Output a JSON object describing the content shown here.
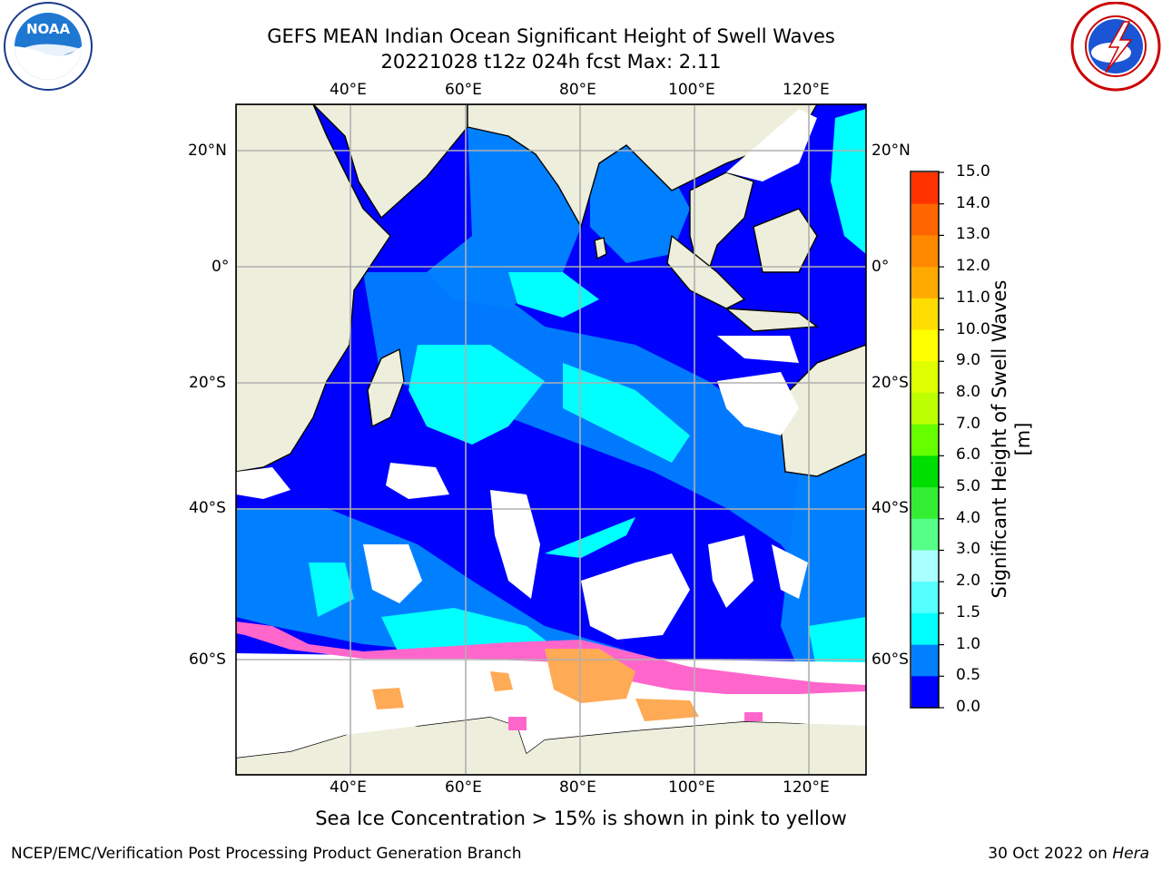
{
  "title": {
    "line1": "GEFS MEAN Indian Ocean Significant Height of Swell Waves",
    "line2": "20221028 t12z 024h fcst   Max: 2.11"
  },
  "logos": {
    "left": "NOAA",
    "right": "NATIONAL WEATHER SERVICE"
  },
  "map": {
    "lon_ticks_top": [
      "40°E",
      "60°E",
      "80°E",
      "100°E",
      "120°E"
    ],
    "lon_ticks_bottom": [
      "40°E",
      "60°E",
      "80°E",
      "100°E",
      "120°E"
    ],
    "lat_ticks_left": [
      "20°N",
      "0°",
      "20°S",
      "40°S",
      "60°S"
    ],
    "lat_ticks_right": [
      "20°N",
      "0°",
      "20°S",
      "40°S",
      "60°S"
    ],
    "colors": {
      "land": "#eeeedd",
      "ocean_low": "#0000ff",
      "ocean_mid": "#0080ff",
      "ocean_high": "#00ffff",
      "ice_pink": "#ff66cc",
      "ice_orange": "#ffaa55"
    }
  },
  "colorbar": {
    "label": "Significant Height of Swell Waves [m]",
    "ticks": [
      "15.0",
      "14.0",
      "13.0",
      "12.0",
      "11.0",
      "10.0",
      "9.0",
      "8.0",
      "7.0",
      "6.0",
      "5.0",
      "4.0",
      "3.0",
      "2.0",
      "1.5",
      "1.0",
      "0.5",
      "0.0"
    ],
    "colors": [
      "#ff0000",
      "#ff3300",
      "#ff6600",
      "#ff8800",
      "#ffaa00",
      "#ffdd00",
      "#ffff00",
      "#ddff00",
      "#bbff00",
      "#66ff00",
      "#00dd00",
      "#33ee33",
      "#55ff88",
      "#aaffff",
      "#55ffff",
      "#00ffff",
      "#0080ff",
      "#0000ff"
    ]
  },
  "note": "Sea Ice Concentration > 15% is shown in pink to yellow",
  "footer": {
    "left": "NCEP/EMC/Verification Post Processing Product Generation Branch",
    "right_prefix": "30 Oct 2022 on ",
    "right_host": "Hera"
  }
}
